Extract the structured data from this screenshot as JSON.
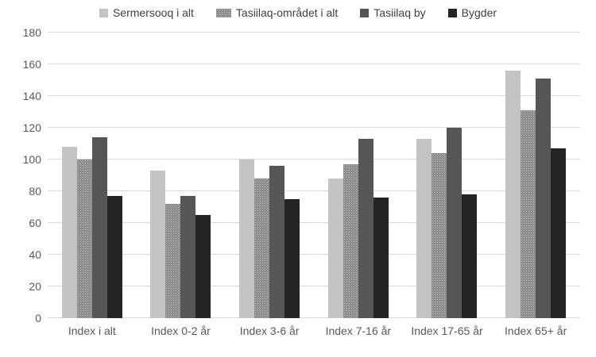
{
  "chart_data": {
    "type": "bar",
    "title": "",
    "categories": [
      "Index i alt",
      "Index 0-2 år",
      "Index 3-6 år",
      "Index 7-16 år",
      "Index 17-65 år",
      "Index 65+ år"
    ],
    "series": [
      {
        "name": "Sermersooq i alt",
        "color": "#c3c3c3",
        "pattern": "solid",
        "values": [
          108,
          93,
          100,
          88,
          113,
          156
        ]
      },
      {
        "name": "Tasiilaq-området i alt",
        "color": "#8f8f8f",
        "pattern": "dotted",
        "values": [
          100,
          72,
          88,
          97,
          104,
          131
        ]
      },
      {
        "name": "Tasiilaq by",
        "color": "#565656",
        "pattern": "solid",
        "values": [
          114,
          77,
          96,
          113,
          120,
          151
        ]
      },
      {
        "name": "Bygder",
        "color": "#242424",
        "pattern": "solid",
        "values": [
          77,
          65,
          75,
          76,
          78,
          107
        ]
      }
    ],
    "xlabel": "",
    "ylabel": "",
    "ylim": [
      0,
      180
    ],
    "yticks": [
      0,
      20,
      40,
      60,
      80,
      100,
      120,
      140,
      160,
      180
    ],
    "grid": true,
    "legend_position": "top",
    "colors": {
      "gridline": "#d9d9d9",
      "axis_text": "#595959",
      "legend_text": "#404040",
      "background": "#ffffff"
    }
  }
}
